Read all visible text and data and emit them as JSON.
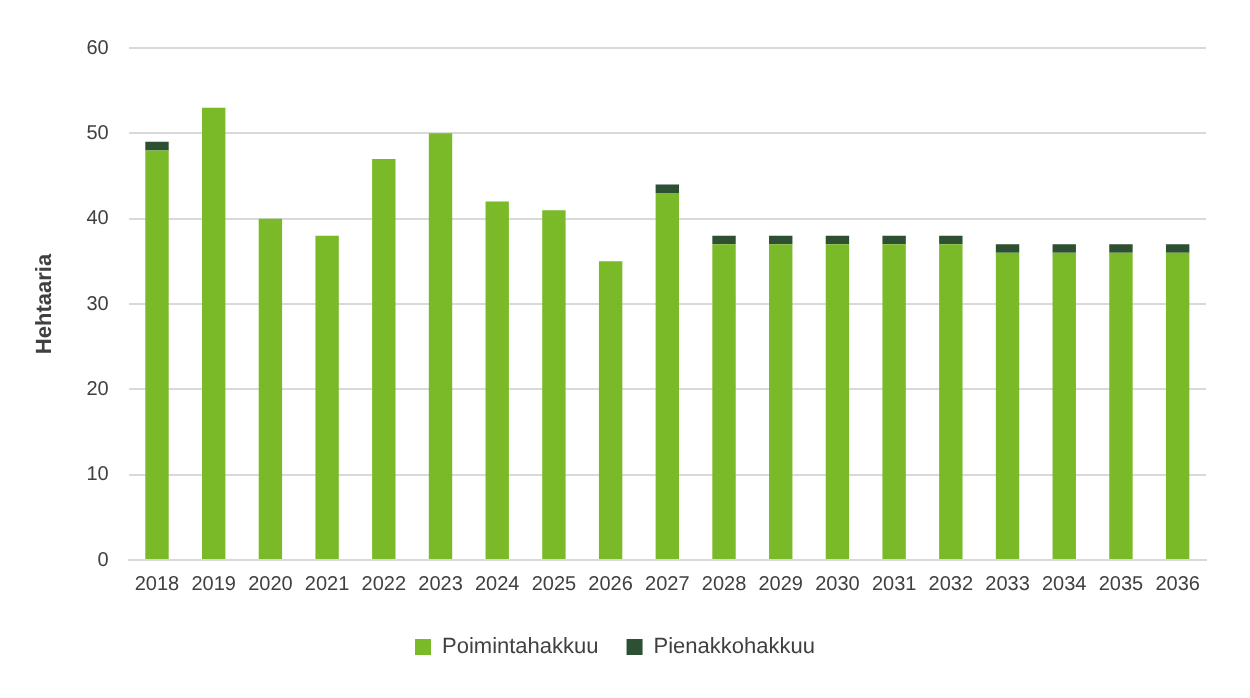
{
  "chart_data": {
    "type": "bar",
    "stacked": true,
    "ylabel": "Hehtaaria",
    "categories": [
      "2018",
      "2019",
      "2020",
      "2021",
      "2022",
      "2023",
      "2024",
      "2025",
      "2026",
      "2027",
      "2028",
      "2029",
      "2030",
      "2031",
      "2032",
      "2033",
      "2034",
      "2035",
      "2036"
    ],
    "series": [
      {
        "name": "Poimintahakkuu",
        "color": "#7aba28",
        "values": [
          48,
          53,
          40,
          38,
          47,
          50,
          42,
          41,
          35,
          43,
          37,
          37,
          37,
          37,
          37,
          36,
          36,
          36,
          36
        ]
      },
      {
        "name": "Pienakkohakkuu",
        "color": "#2d4f32",
        "values": [
          1,
          0,
          0,
          0,
          0,
          0,
          0,
          0,
          0,
          1,
          1,
          1,
          1,
          1,
          1,
          1,
          1,
          1,
          1
        ]
      }
    ],
    "ylim": [
      0,
      60
    ],
    "yticks": [
      0,
      10,
      20,
      30,
      40,
      50,
      60
    ],
    "grid": "y",
    "legend": "bottom"
  }
}
